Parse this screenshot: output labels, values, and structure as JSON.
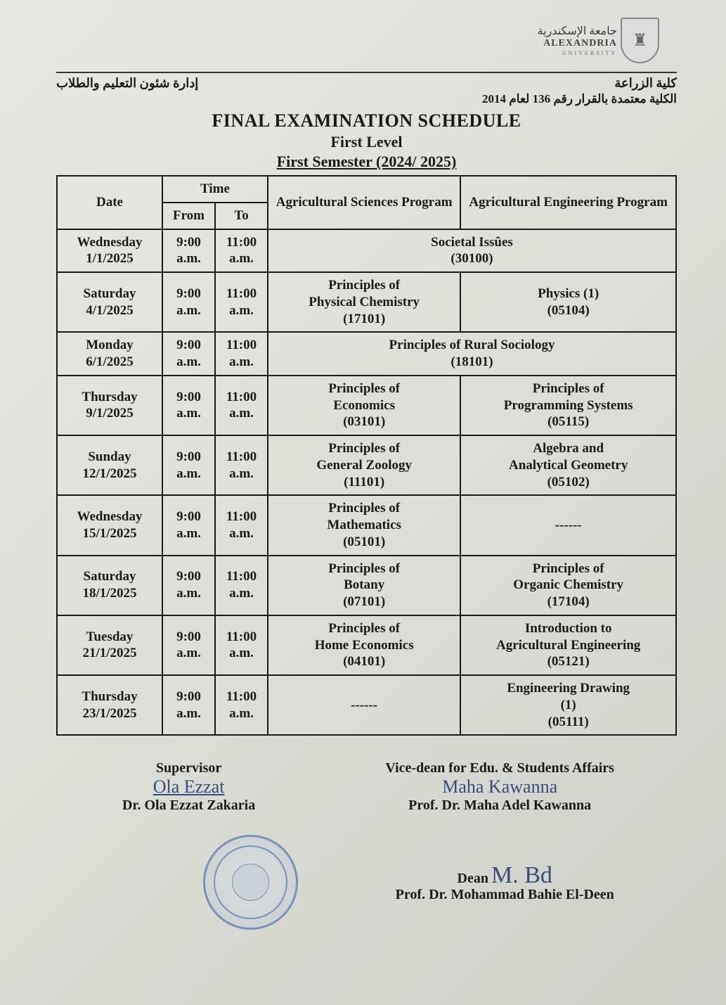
{
  "university": {
    "arabic_name": "جامعة الإسكندرية",
    "english_name": "ALEXANDRIA",
    "english_sub": "UNIVERSITY"
  },
  "header": {
    "left_arabic": "إدارة شئون التعليم والطلاب",
    "right_arabic": "كلية الزراعة",
    "sub_arabic": "الكلية معتمدة بالقرار رقم 136 لعام 2014"
  },
  "title": {
    "main": "FINAL EXAMINATION SCHEDULE",
    "level": "First Level",
    "semester": "First Semester (2024/ 2025)"
  },
  "table": {
    "headers": {
      "date": "Date",
      "time": "Time",
      "from": "From",
      "to": "To",
      "prog1": "Agricultural Sciences Program",
      "prog2": "Agricultural Engineering Program"
    },
    "rows": [
      {
        "day": "Wednesday",
        "date": "1/1/2025",
        "from": "9:00 a.m.",
        "to": "11:00 a.m.",
        "merged": true,
        "course": "Societal Issûes (30100)"
      },
      {
        "day": "Saturday",
        "date": "4/1/2025",
        "from": "9:00 a.m.",
        "to": "11:00 a.m.",
        "c1": "Principles of Physical Chemistry (17101)",
        "c2": "Physics (1) (05104)"
      },
      {
        "day": "Monday",
        "date": "6/1/2025",
        "from": "9:00 a.m.",
        "to": "11:00 a.m.",
        "merged": true,
        "course": "Principles of Rural Sociology (18101)"
      },
      {
        "day": "Thursday",
        "date": "9/1/2025",
        "from": "9:00 a.m.",
        "to": "11:00 a.m.",
        "c1": "Principles of Economics (03101)",
        "c2": "Principles of Programming Systems (05115)"
      },
      {
        "day": "Sunday",
        "date": "12/1/2025",
        "from": "9:00 a.m.",
        "to": "11:00 a.m.",
        "c1": "Principles of General Zoology (11101)",
        "c2": "Algebra and Analytical Geometry (05102)"
      },
      {
        "day": "Wednesday",
        "date": "15/1/2025",
        "from": "9:00 a.m.",
        "to": "11:00 a.m.",
        "c1": "Principles of Mathematics (05101)",
        "c2": "------"
      },
      {
        "day": "Saturday",
        "date": "18/1/2025",
        "from": "9:00 a.m.",
        "to": "11:00 a.m.",
        "c1": "Principles of Botany (07101)",
        "c2": "Principles of Organic Chemistry (17104)"
      },
      {
        "day": "Tuesday",
        "date": "21/1/2025",
        "from": "9:00 a.m.",
        "to": "11:00 a.m.",
        "c1": "Principles of Home Economics (04101)",
        "c2": "Introduction to Agricultural Engineering (05121)"
      },
      {
        "day": "Thursday",
        "date": "23/1/2025",
        "from": "9:00 a.m.",
        "to": "11:00 a.m.",
        "c1": "------",
        "c2": "Engineering Drawing (1) (05111)"
      }
    ]
  },
  "signatures": {
    "supervisor": {
      "title": "Supervisor",
      "handwriting": "Ola Ezzat",
      "name": "Dr. Ola Ezzat Zakaria"
    },
    "vice_dean": {
      "title": "Vice-dean for Edu. & Students Affairs",
      "handwriting": "Maha Kawanna",
      "name": "Prof. Dr. Maha Adel Kawanna"
    },
    "dean": {
      "title": "Dean",
      "handwriting": "M. Bd",
      "name": "Prof. Dr. Mohammad Bahie El-Deen"
    }
  },
  "colors": {
    "text": "#1a1a1a",
    "signature_ink": "#3a4a7a",
    "stamp": "#5a7aaa",
    "border": "#1a1a1a"
  }
}
